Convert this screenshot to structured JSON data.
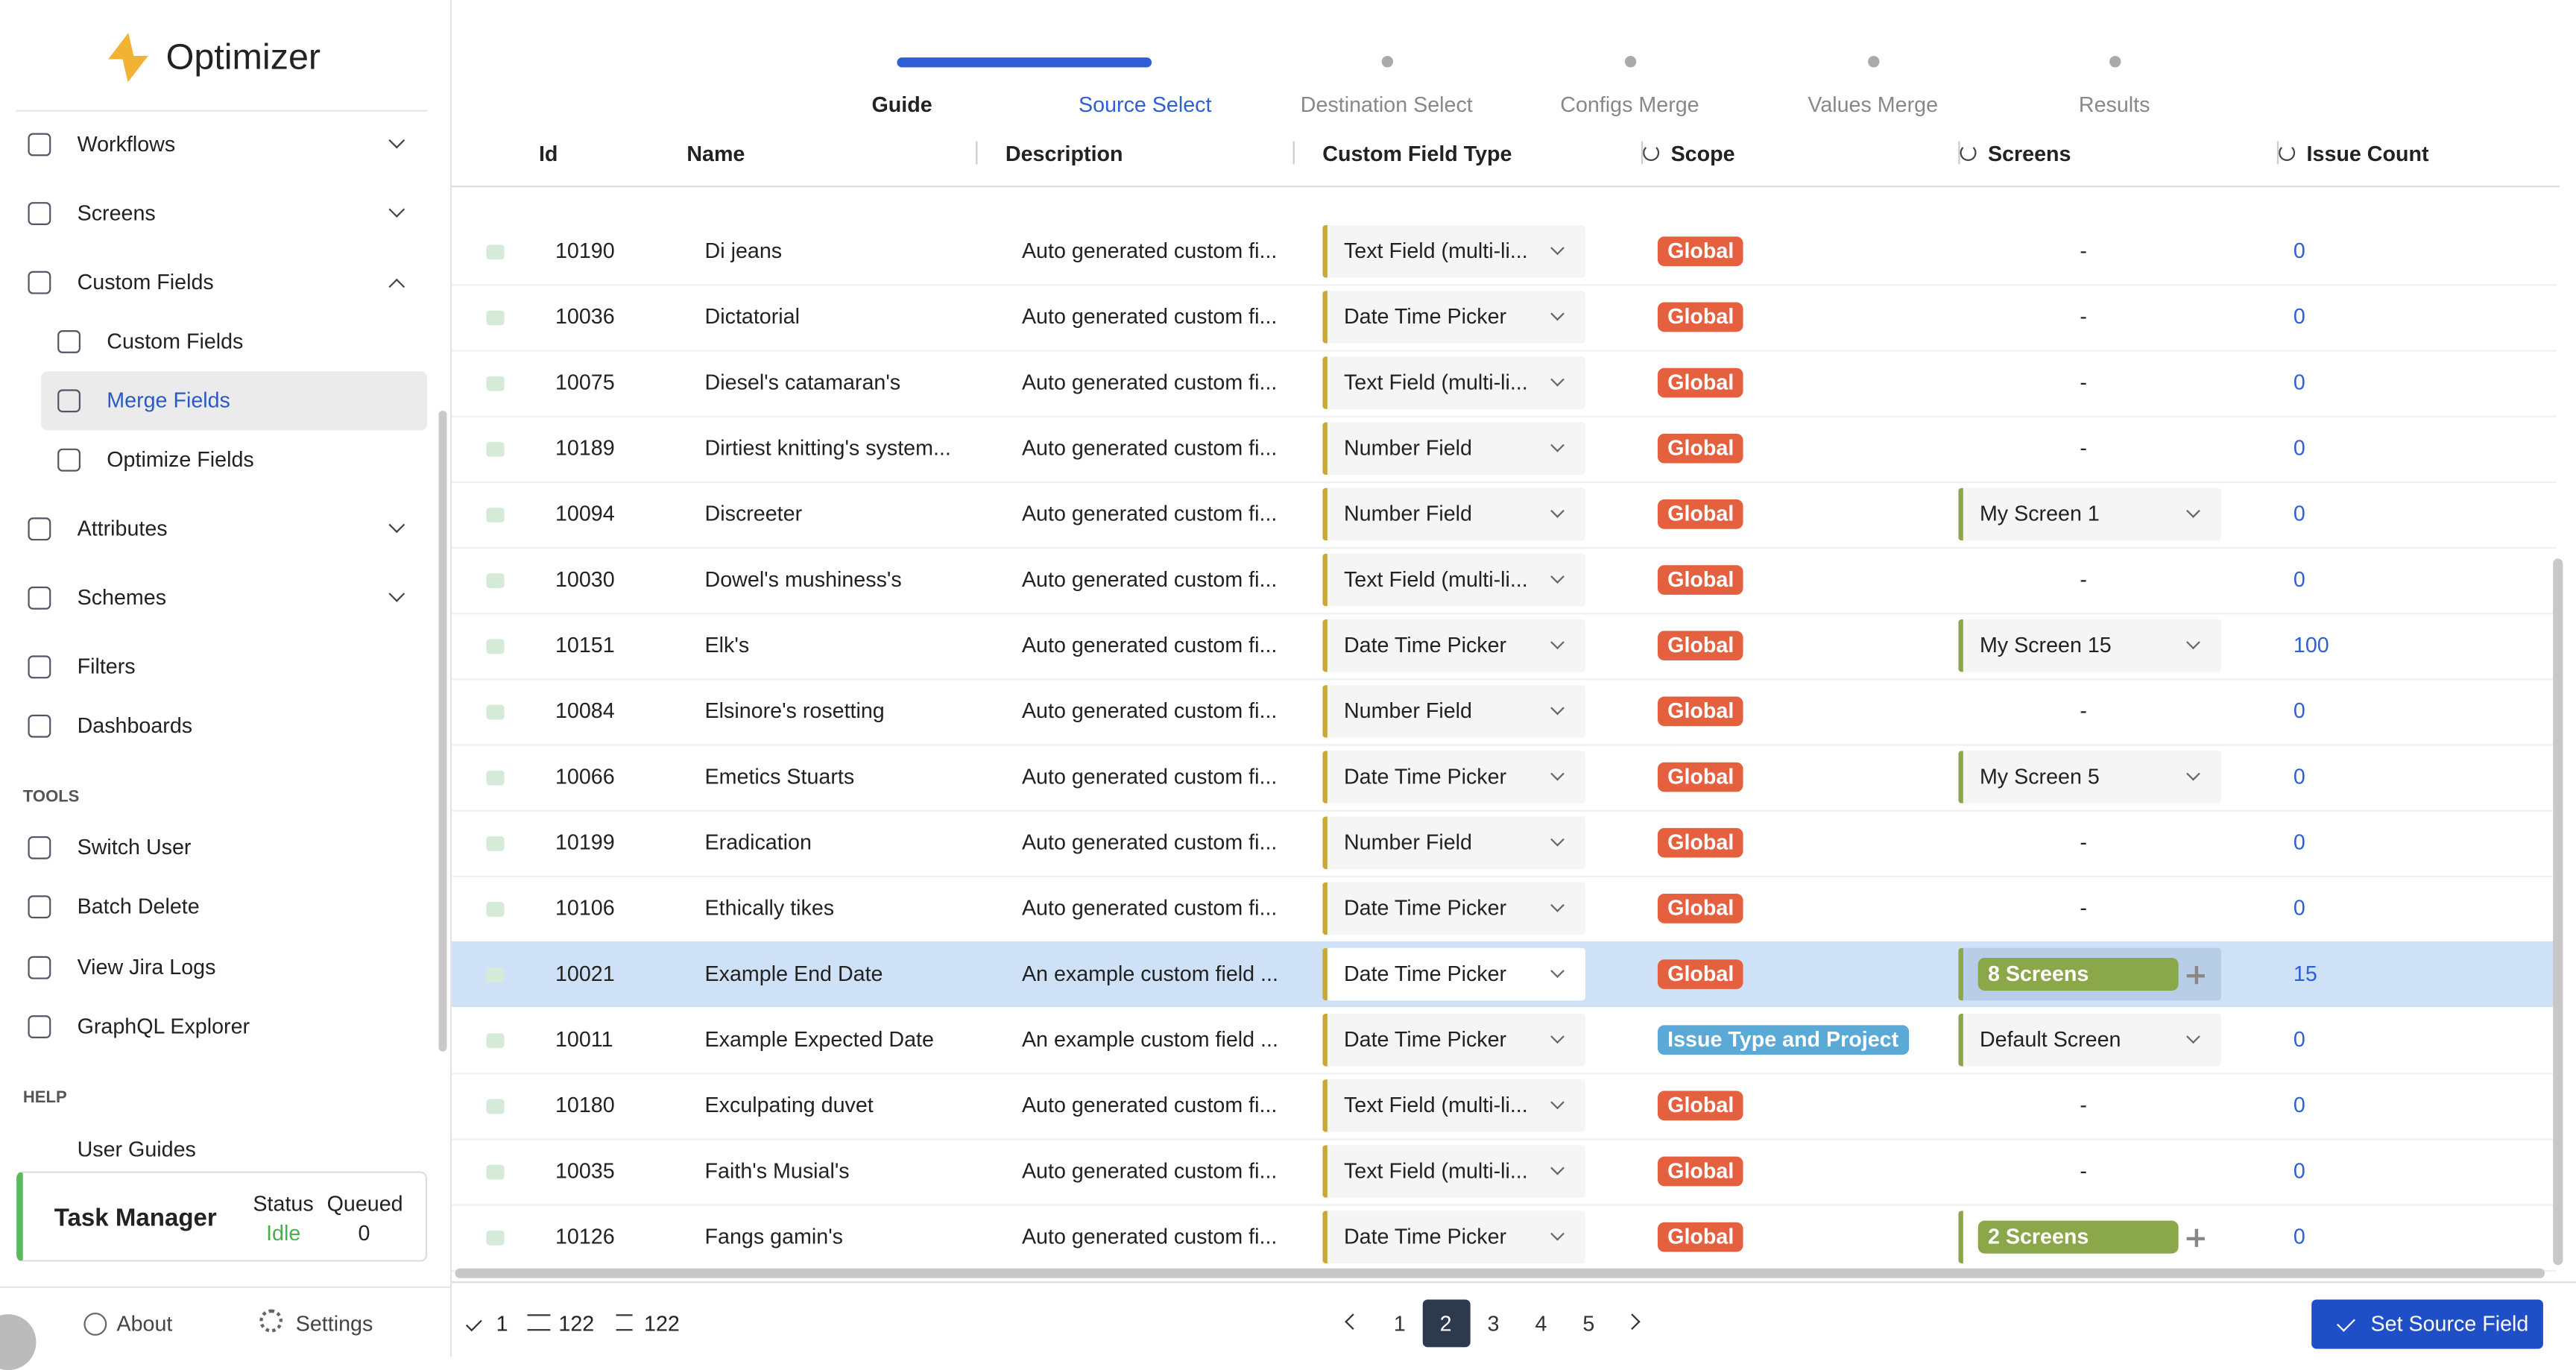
{
  "sidebar": {
    "brand": "Optimizer",
    "nav": [
      "Workflows",
      "Screens",
      "Custom Fields"
    ],
    "sub": [
      "Custom Fields",
      "Merge Fields",
      "Optimize Fields"
    ],
    "nav2": [
      "Attributes",
      "Schemes",
      "Filters",
      "Dashboards"
    ],
    "tools_title": "TOOLS",
    "tools": [
      "Switch User",
      "Batch Delete",
      "View Jira Logs",
      "GraphQL Explorer"
    ],
    "help_title": "HELP",
    "help": [
      "User Guides"
    ],
    "task": {
      "title": "Task Manager",
      "status_label": "Status",
      "status": "Idle",
      "queued_label": "Queued",
      "queued": "0"
    },
    "footer": [
      "About",
      "Settings"
    ]
  },
  "stepper": [
    "Guide",
    "Source Select",
    "Destination Select",
    "Configs Merge",
    "Values Merge",
    "Results"
  ],
  "table": {
    "columns": [
      "Id",
      "Name",
      "Description",
      "Custom Field Type",
      "Scope",
      "Screens",
      "Issue Count"
    ],
    "rows": [
      {
        "id": "10190",
        "name": "Di jeans",
        "description": "Auto generated custom fi...",
        "type": "Text Field (multi-li...",
        "scope": "Global",
        "scope_color": "#e5603f",
        "screens": "-",
        "screens_style": "text",
        "issue_count": "0"
      },
      {
        "id": "10036",
        "name": "Dictatorial",
        "description": "Auto generated custom fi...",
        "type": "Date Time Picker",
        "scope": "Global",
        "scope_color": "#e5603f",
        "screens": "-",
        "screens_style": "text",
        "issue_count": "0"
      },
      {
        "id": "10075",
        "name": "Diesel's catamaran's",
        "description": "Auto generated custom fi...",
        "type": "Text Field (multi-li...",
        "scope": "Global",
        "scope_color": "#e5603f",
        "screens": "-",
        "screens_style": "text",
        "issue_count": "0"
      },
      {
        "id": "10189",
        "name": "Dirtiest knitting's system...",
        "description": "Auto generated custom fi...",
        "type": "Number Field",
        "scope": "Global",
        "scope_color": "#e5603f",
        "screens": "-",
        "screens_style": "text",
        "issue_count": "0"
      },
      {
        "id": "10094",
        "name": "Discreeter",
        "description": "Auto generated custom fi...",
        "type": "Number Field",
        "scope": "Global",
        "scope_color": "#e5603f",
        "screens": "My Screen 1",
        "screens_style": "select",
        "issue_count": "0"
      },
      {
        "id": "10030",
        "name": "Dowel's mushiness's",
        "description": "Auto generated custom fi...",
        "type": "Text Field (multi-li...",
        "scope": "Global",
        "scope_color": "#e5603f",
        "screens": "-",
        "screens_style": "text",
        "issue_count": "0"
      },
      {
        "id": "10151",
        "name": "Elk's",
        "description": "Auto generated custom fi...",
        "type": "Date Time Picker",
        "scope": "Global",
        "scope_color": "#e5603f",
        "screens": "My Screen 15",
        "screens_style": "select",
        "issue_count": "100"
      },
      {
        "id": "10084",
        "name": "Elsinore's rosetting",
        "description": "Auto generated custom fi...",
        "type": "Number Field",
        "scope": "Global",
        "scope_color": "#e5603f",
        "screens": "-",
        "screens_style": "text",
        "issue_count": "0"
      },
      {
        "id": "10066",
        "name": "Emetics Stuarts",
        "description": "Auto generated custom fi...",
        "type": "Date Time Picker",
        "scope": "Global",
        "scope_color": "#e5603f",
        "screens": "My Screen 5",
        "screens_style": "select",
        "issue_count": "0"
      },
      {
        "id": "10199",
        "name": "Eradication",
        "description": "Auto generated custom fi...",
        "type": "Number Field",
        "scope": "Global",
        "scope_color": "#e5603f",
        "screens": "-",
        "screens_style": "text",
        "issue_count": "0"
      },
      {
        "id": "10106",
        "name": "Ethically tikes",
        "description": "Auto generated custom fi...",
        "type": "Date Time Picker",
        "scope": "Global",
        "scope_color": "#e5603f",
        "screens": "-",
        "screens_style": "text",
        "issue_count": "0"
      },
      {
        "id": "10021",
        "name": "Example End Date",
        "description": "An example custom field ...",
        "type": "Date Time Picker",
        "scope": "Global",
        "scope_color": "#e5603f",
        "screens": "8 Screens",
        "screens_style": "badge",
        "issue_count": "15",
        "selected": true
      },
      {
        "id": "10011",
        "name": "Example Expected Date",
        "description": "An example custom field ...",
        "type": "Date Time Picker",
        "scope": "Issue Type and Project",
        "scope_color": "#5aa9d6",
        "screens": "Default Screen",
        "screens_style": "select",
        "issue_count": "0"
      },
      {
        "id": "10180",
        "name": "Exculpating duvet",
        "description": "Auto generated custom fi...",
        "type": "Text Field (multi-li...",
        "scope": "Global",
        "scope_color": "#e5603f",
        "screens": "-",
        "screens_style": "text",
        "issue_count": "0"
      },
      {
        "id": "10035",
        "name": "Faith's Musial's",
        "description": "Auto generated custom fi...",
        "type": "Text Field (multi-li...",
        "scope": "Global",
        "scope_color": "#e5603f",
        "screens": "-",
        "screens_style": "text",
        "issue_count": "0"
      },
      {
        "id": "10126",
        "name": "Fangs gamin's",
        "description": "Auto generated custom fi...",
        "type": "Date Time Picker",
        "scope": "Global",
        "scope_color": "#e5603f",
        "screens": "2 Screens",
        "screens_style": "badge",
        "issue_count": "0"
      }
    ]
  },
  "footer": {
    "selected": "1",
    "filtered": "122",
    "total": "122",
    "pages": [
      "1",
      "2",
      "3",
      "4",
      "5"
    ],
    "current_page": "2",
    "button": "Set Source Field"
  }
}
